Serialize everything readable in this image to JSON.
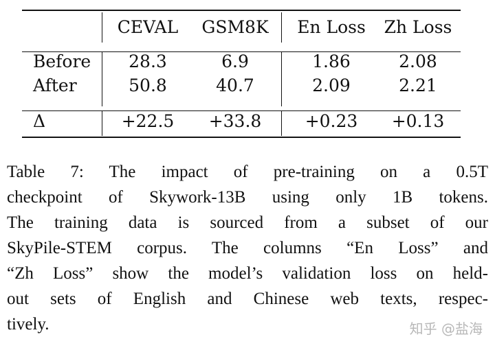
{
  "table": {
    "headers": [
      "",
      "CEVAL",
      "GSM8K",
      "En Loss",
      "Zh Loss"
    ],
    "rows": [
      {
        "label": "Before",
        "values": [
          "28.3",
          "6.9",
          "1.86",
          "2.08"
        ]
      },
      {
        "label": "After",
        "values": [
          "50.8",
          "40.7",
          "2.09",
          "2.21"
        ]
      },
      {
        "label": "Δ",
        "values": [
          "+22.5",
          "+33.8",
          "+0.23",
          "+0.13"
        ]
      }
    ]
  },
  "caption": {
    "lines": [
      "Table 7:  The impact of pre-training on a 0.5T",
      "checkpoint of Skywork-13B using only 1B tokens.",
      "The training data is sourced from a subset of our",
      "SkyPile-STEM corpus.  The columns “En Loss” and",
      "“Zh Loss” show the model’s validation loss on held-",
      "out sets of English and Chinese web texts, respec-",
      "tively."
    ]
  },
  "watermark": "知乎 @盐海"
}
